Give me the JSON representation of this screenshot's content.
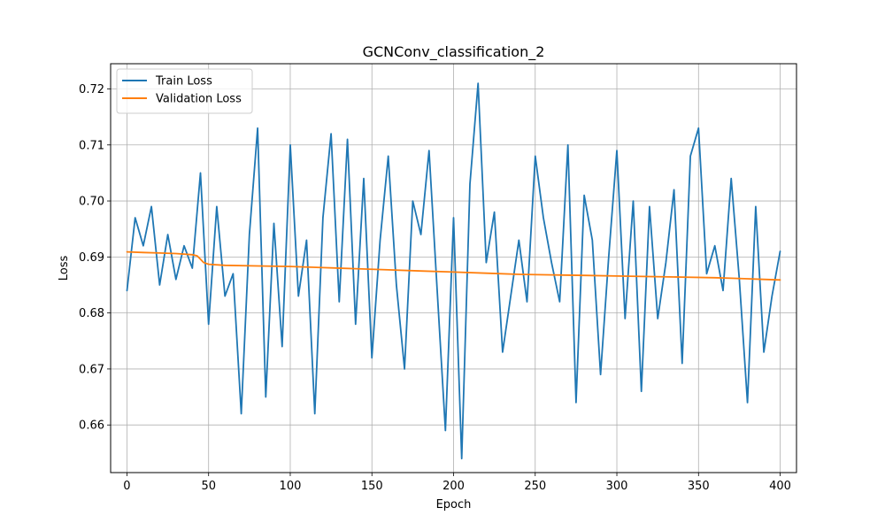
{
  "chart_data": {
    "type": "line",
    "title": "GCNConv_classification_2",
    "xlabel": "Epoch",
    "ylabel": "Loss",
    "xlim": [
      -10,
      410
    ],
    "ylim": [
      0.6515,
      0.7245
    ],
    "xticks": [
      0,
      50,
      100,
      150,
      200,
      250,
      300,
      350,
      400
    ],
    "yticks": [
      0.66,
      0.67,
      0.68,
      0.69,
      0.7,
      0.71,
      0.72
    ],
    "ytick_labels": [
      "0.66",
      "0.67",
      "0.68",
      "0.69",
      "0.70",
      "0.71",
      "0.72"
    ],
    "grid": true,
    "legend_position": "top-left",
    "series": [
      {
        "name": "Train Loss",
        "color": "#1f77b4",
        "x": [
          0,
          5,
          10,
          15,
          20,
          25,
          30,
          35,
          40,
          45,
          50,
          55,
          60,
          65,
          70,
          75,
          80,
          85,
          90,
          95,
          100,
          105,
          110,
          115,
          120,
          125,
          130,
          135,
          140,
          145,
          150,
          155,
          160,
          165,
          170,
          175,
          180,
          185,
          190,
          195,
          200,
          205,
          210,
          215,
          220,
          225,
          230,
          235,
          240,
          245,
          250,
          255,
          260,
          265,
          270,
          275,
          280,
          285,
          290,
          295,
          300,
          305,
          310,
          315,
          320,
          325,
          330,
          335,
          340,
          345,
          350,
          355,
          360,
          365,
          370,
          375,
          380,
          385,
          390,
          395,
          400
        ],
        "y": [
          0.684,
          0.697,
          0.692,
          0.699,
          0.685,
          0.694,
          0.686,
          0.692,
          0.688,
          0.705,
          0.678,
          0.699,
          0.683,
          0.687,
          0.662,
          0.694,
          0.713,
          0.665,
          0.696,
          0.674,
          0.71,
          0.683,
          0.693,
          0.662,
          0.697,
          0.712,
          0.682,
          0.711,
          0.678,
          0.704,
          0.672,
          0.693,
          0.708,
          0.685,
          0.67,
          0.7,
          0.694,
          0.709,
          0.684,
          0.659,
          0.697,
          0.654,
          0.703,
          0.721,
          0.689,
          0.698,
          0.673,
          0.683,
          0.693,
          0.682,
          0.708,
          0.697,
          0.689,
          0.682,
          0.71,
          0.664,
          0.701,
          0.693,
          0.669,
          0.69,
          0.709,
          0.679,
          0.7,
          0.666,
          0.699,
          0.679,
          0.689,
          0.702,
          0.671,
          0.708,
          0.713,
          0.687,
          0.692,
          0.684,
          0.704,
          0.686,
          0.664,
          0.699,
          0.673,
          0.683,
          0.691
        ]
      },
      {
        "name": "Validation Loss",
        "color": "#ff7f0e",
        "x": [
          0,
          10,
          20,
          30,
          40,
          43,
          45,
          47,
          50,
          60,
          80,
          100,
          120,
          140,
          160,
          180,
          200,
          220,
          240,
          260,
          280,
          300,
          320,
          340,
          360,
          370,
          380,
          390,
          400
        ],
        "y": [
          0.6909,
          0.6908,
          0.6907,
          0.6906,
          0.6904,
          0.6902,
          0.6896,
          0.689,
          0.6887,
          0.6885,
          0.6884,
          0.6883,
          0.6881,
          0.6879,
          0.6877,
          0.6875,
          0.6873,
          0.6871,
          0.6869,
          0.6868,
          0.6867,
          0.6866,
          0.6865,
          0.6864,
          0.6863,
          0.6862,
          0.6861,
          0.686,
          0.6859
        ]
      }
    ]
  }
}
